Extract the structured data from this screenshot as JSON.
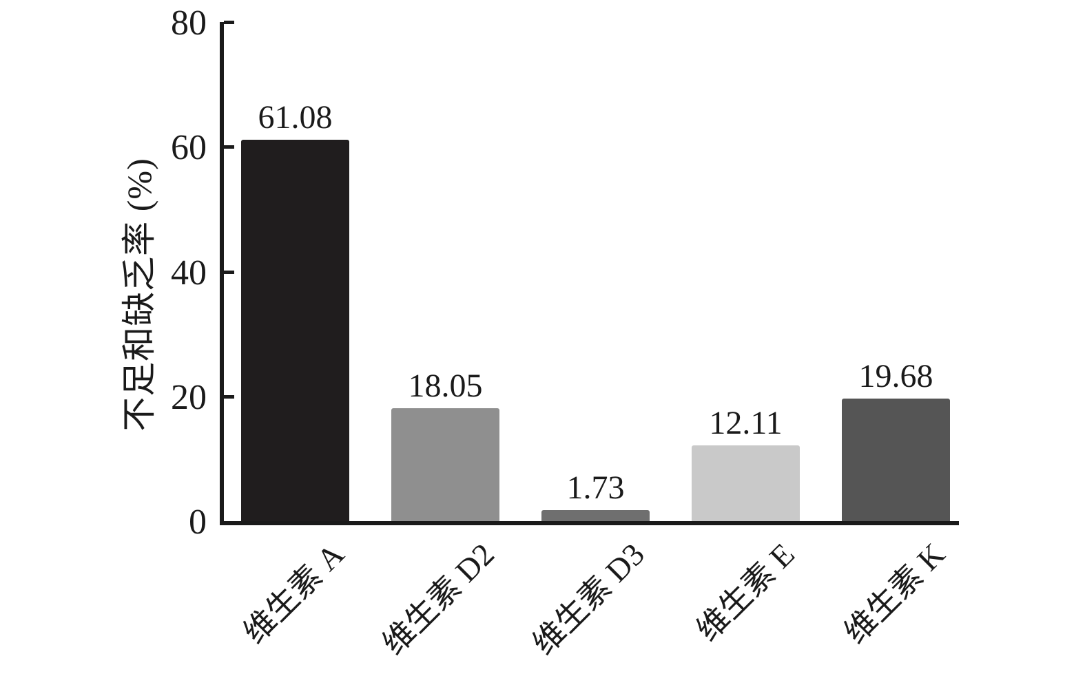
{
  "chart_data": {
    "type": "bar",
    "title": "",
    "xlabel": "",
    "ylabel": "不足和缺乏率 (%)",
    "categories": [
      "维生素 A",
      "维生素 D2",
      "维生素 D3",
      "维生素 E",
      "维生素 K"
    ],
    "values": [
      61.08,
      18.05,
      1.73,
      12.11,
      19.68
    ],
    "value_labels": [
      "61.08",
      "18.05",
      "1.73",
      "12.11",
      "19.68"
    ],
    "bar_colors": [
      "#201d1e",
      "#8f8f8f",
      "#6f6f6f",
      "#c9c9c9",
      "#555555"
    ],
    "ylim": [
      0,
      80
    ],
    "yticks": [
      0,
      20,
      40,
      60,
      80
    ],
    "grid": false,
    "legend": null,
    "axis_color": "#1a1a1a",
    "background_color": "#ffffff",
    "bar_label_position": "above-bar",
    "x_tick_rotation_deg": 45
  }
}
